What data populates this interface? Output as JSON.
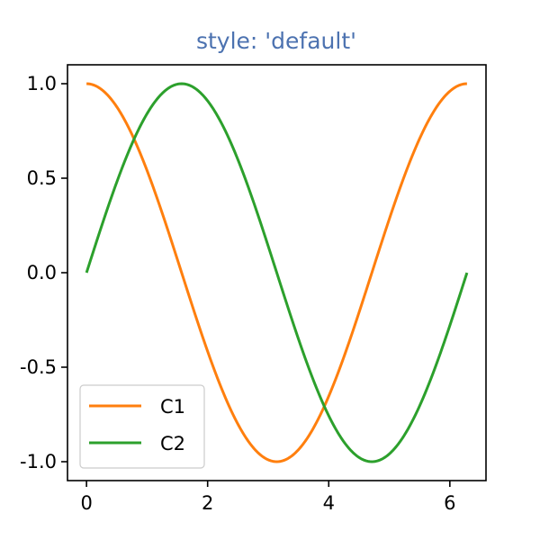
{
  "title": "style: 'default'",
  "colors": {
    "title": "#4c72b0",
    "background": "#ffffff",
    "axes": "#000000"
  },
  "chart_data": {
    "type": "line",
    "title": "style: 'default'",
    "xlabel": "",
    "ylabel": "",
    "xlim": [
      -0.314,
      6.597
    ],
    "ylim": [
      -1.1,
      1.1
    ],
    "x_ticks": [
      0,
      2,
      4,
      6
    ],
    "x_tick_labels": [
      "0",
      "2",
      "4",
      "6"
    ],
    "y_ticks": [
      1.0,
      0.5,
      0.0,
      -0.5,
      -1.0
    ],
    "y_tick_labels": [
      "1.0",
      "0.5",
      "0.0",
      "-0.5",
      "-1.0"
    ],
    "grid": false,
    "legend_position": "lower-left",
    "x_range": [
      0,
      6.283
    ],
    "series": [
      {
        "name": "C1",
        "color": "#ff7f0e",
        "function": "cos(x)",
        "x": [
          0,
          0.393,
          0.785,
          1.178,
          1.571,
          1.963,
          2.356,
          2.749,
          3.142,
          3.534,
          3.927,
          4.32,
          4.712,
          5.105,
          5.498,
          5.89,
          6.283
        ],
        "y": [
          1.0,
          0.924,
          0.707,
          0.383,
          0.0,
          -0.383,
          -0.707,
          -0.924,
          -1.0,
          -0.924,
          -0.707,
          -0.383,
          0.0,
          0.383,
          0.707,
          0.924,
          1.0
        ]
      },
      {
        "name": "C2",
        "color": "#2ca02c",
        "function": "sin(x)",
        "x": [
          0,
          0.393,
          0.785,
          1.178,
          1.571,
          1.963,
          2.356,
          2.749,
          3.142,
          3.534,
          3.927,
          4.32,
          4.712,
          5.105,
          5.498,
          5.89,
          6.283
        ],
        "y": [
          0.0,
          0.383,
          0.707,
          0.924,
          1.0,
          0.924,
          0.707,
          0.383,
          0.0,
          -0.383,
          -0.707,
          -0.924,
          -1.0,
          -0.924,
          -0.707,
          -0.383,
          0.0
        ]
      }
    ]
  }
}
